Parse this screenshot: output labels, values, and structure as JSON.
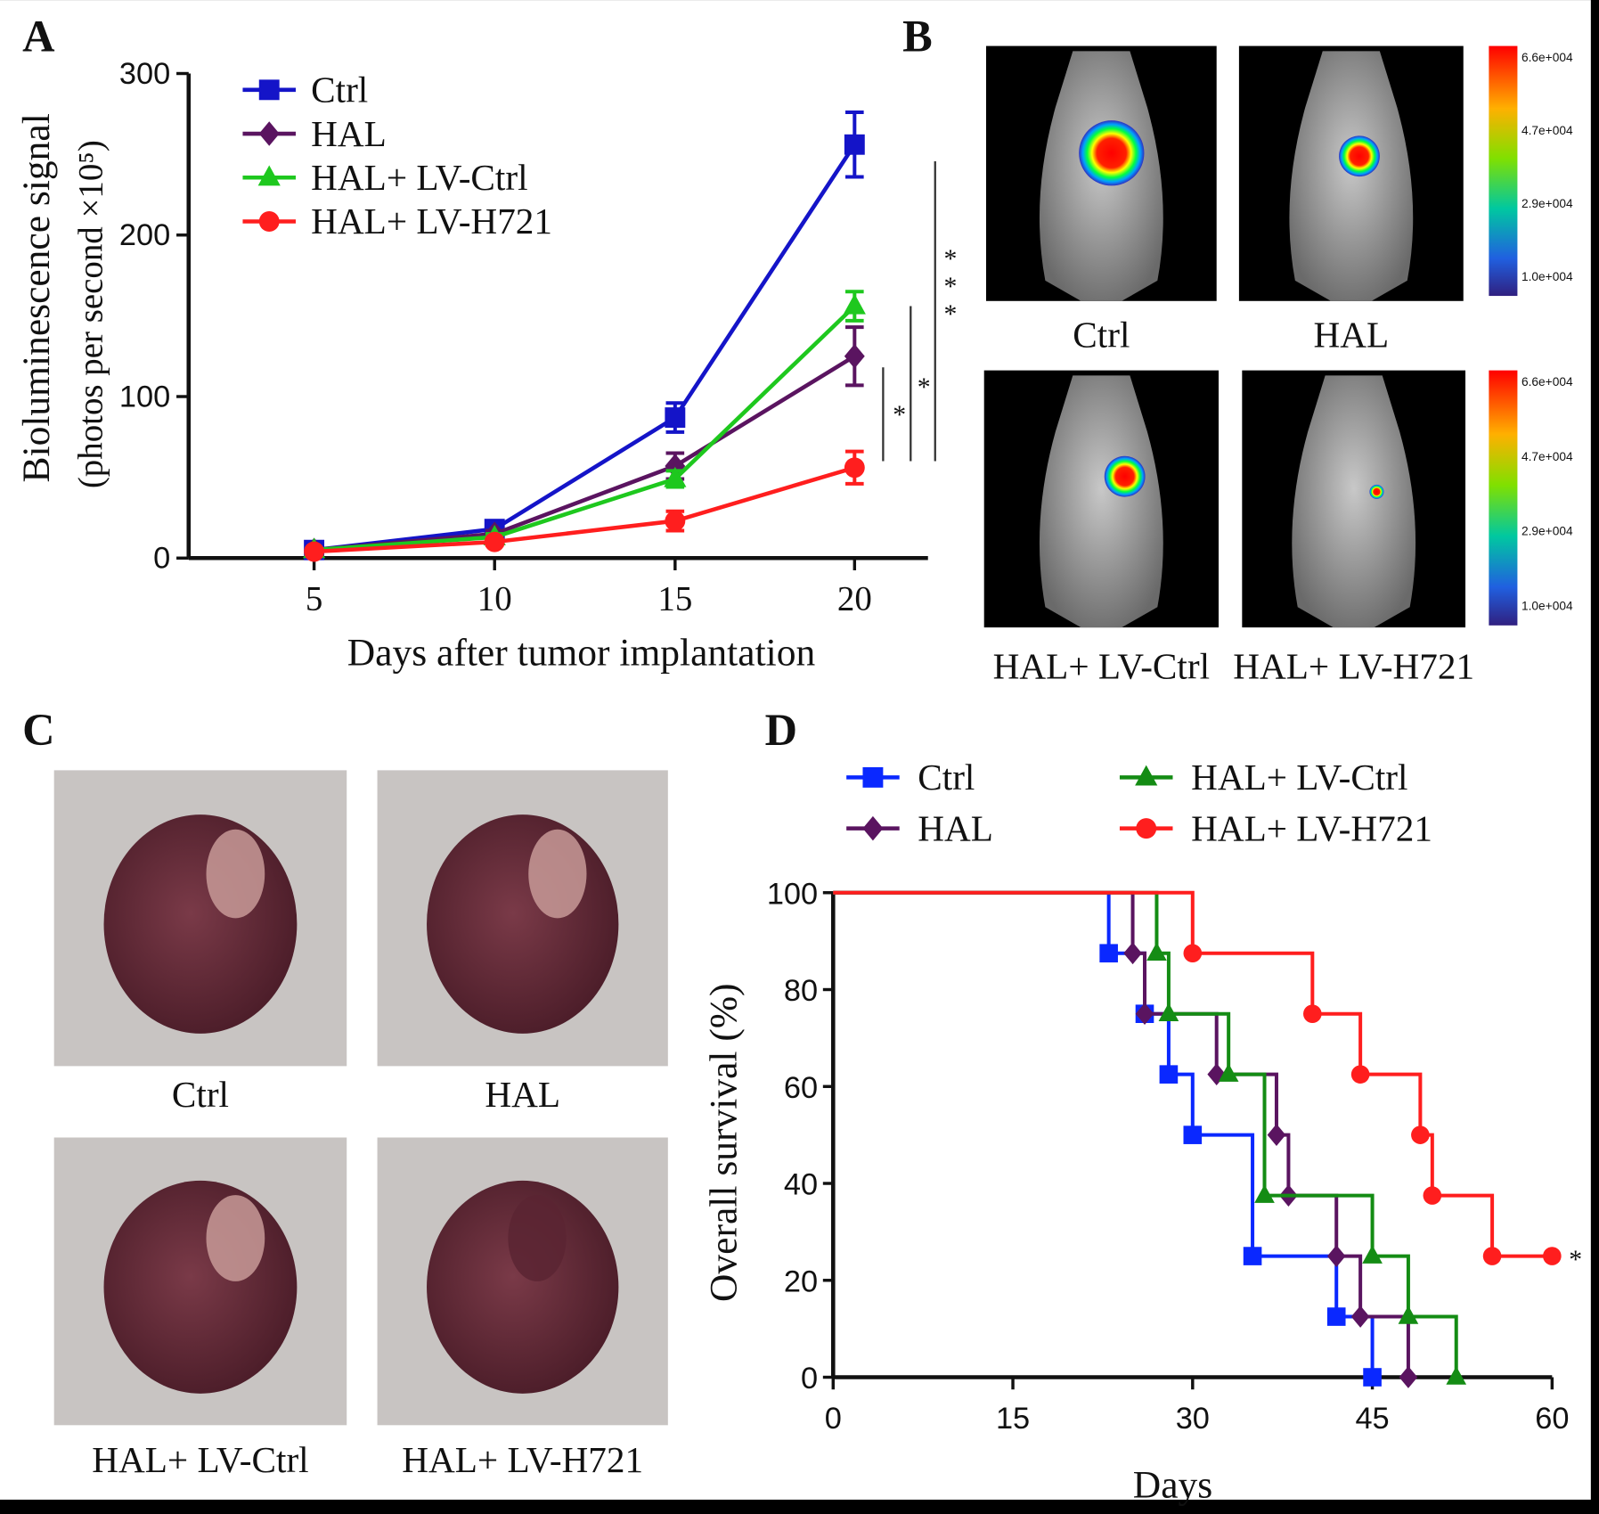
{
  "panels": {
    "A": "A",
    "B": "B",
    "C": "C",
    "D": "D"
  },
  "colors": {
    "Ctrl": "#1414c8",
    "HAL": "#5a1460",
    "HAL+ LV-Ctrl": "#1ec81e",
    "HAL+ LV-H721": "#ff1e1e",
    "D_Ctrl": "#0a28ff",
    "D_HAL": "#5a1460",
    "D_LVCtrl": "#148c14",
    "D_H721": "#ff1e1e"
  },
  "chart_data": [
    {
      "type": "line",
      "panel": "A",
      "xlabel": "Days after tumor implantation",
      "ylabel": "Bioluminescence signal",
      "ylabel2": "(photos per second ×10⁵)",
      "x": [
        5,
        10,
        15,
        20
      ],
      "xticks": [
        "5",
        "10",
        "15",
        "20"
      ],
      "yticks": [
        "0",
        "100",
        "200",
        "300"
      ],
      "ylim": [
        0,
        300
      ],
      "legend": "top-left",
      "series": [
        {
          "name": "Ctrl",
          "marker": "square",
          "values": [
            5,
            18,
            87,
            256
          ],
          "errors": [
            2,
            3,
            9,
            20
          ]
        },
        {
          "name": "HAL",
          "marker": "diamond",
          "values": [
            5,
            15,
            57,
            125
          ],
          "errors": [
            1,
            2,
            8,
            18
          ]
        },
        {
          "name": "HAL+ LV-Ctrl",
          "marker": "triangle",
          "values": [
            5,
            13,
            49,
            156
          ],
          "errors": [
            1,
            2,
            5,
            9
          ]
        },
        {
          "name": "HAL+ LV-H721",
          "marker": "circle",
          "values": [
            4,
            10,
            23,
            56
          ],
          "errors": [
            1,
            2,
            6,
            10
          ]
        }
      ],
      "significance": [
        "*",
        "*",
        "***"
      ]
    },
    {
      "type": "line",
      "panel": "D",
      "step": true,
      "xlabel": "Days",
      "ylabel": "Overall survival (%)",
      "xticks": [
        "0",
        "15",
        "30",
        "45",
        "60"
      ],
      "yticks": [
        "0",
        "20",
        "40",
        "60",
        "80",
        "100"
      ],
      "xlim": [
        0,
        60
      ],
      "ylim": [
        0,
        100
      ],
      "legend": "top",
      "series": [
        {
          "name": "Ctrl",
          "marker": "square",
          "events": [
            [
              23,
              87.5
            ],
            [
              26,
              75
            ],
            [
              28,
              62.5
            ],
            [
              30,
              50
            ],
            [
              35,
              25
            ],
            [
              42,
              12.5
            ],
            [
              45,
              0
            ]
          ]
        },
        {
          "name": "HAL",
          "marker": "diamond",
          "events": [
            [
              25,
              87.5
            ],
            [
              26,
              75
            ],
            [
              32,
              62.5
            ],
            [
              37,
              50
            ],
            [
              38,
              37.5
            ],
            [
              42,
              25
            ],
            [
              44,
              12.5
            ],
            [
              48,
              0
            ]
          ]
        },
        {
          "name": "HAL+ LV-Ctrl",
          "marker": "triangle",
          "events": [
            [
              27,
              87.5
            ],
            [
              28,
              75
            ],
            [
              33,
              62.5
            ],
            [
              36,
              37.5
            ],
            [
              45,
              25
            ],
            [
              48,
              12.5
            ],
            [
              52,
              0
            ]
          ]
        },
        {
          "name": "HAL+ LV-H721",
          "marker": "circle",
          "events": [
            [
              30,
              87.5
            ],
            [
              40,
              75
            ],
            [
              44,
              62.5
            ],
            [
              49,
              50
            ],
            [
              50,
              37.5
            ],
            [
              55,
              25
            ],
            [
              60,
              25
            ]
          ]
        }
      ],
      "annotation": "*"
    }
  ],
  "B": {
    "labels": [
      "Ctrl",
      "HAL",
      "HAL+ LV-Ctrl",
      "HAL+ LV-H721"
    ],
    "colorbar": [
      "6.6e+004",
      "4.7e+004",
      "2.9e+004",
      "1.0e+004"
    ]
  },
  "C": {
    "labels": [
      "Ctrl",
      "HAL",
      "HAL+ LV-Ctrl",
      "HAL+ LV-H721"
    ]
  }
}
